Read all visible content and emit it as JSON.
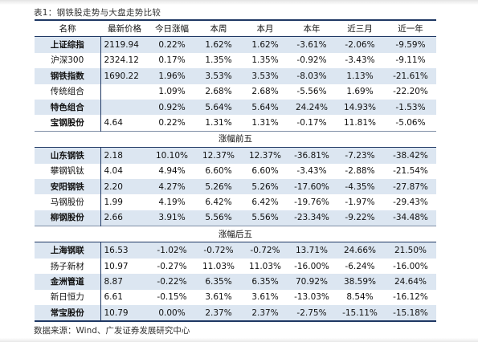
{
  "caption": "表1：钢铁股走势与大盘走势比较",
  "headers": [
    "名称",
    "最新价格",
    "今日涨幅",
    "本周",
    "本月",
    "本年",
    "近三月",
    "近一年"
  ],
  "sections": [
    {
      "title": "",
      "rows": [
        {
          "name": "上证综指",
          "shaded": true,
          "bold": true,
          "values": [
            "2119.94",
            "0.22%",
            "1.62%",
            "1.62%",
            "-3.61%",
            "-2.06%",
            "-9.59%"
          ]
        },
        {
          "name": "沪深300",
          "shaded": false,
          "bold": false,
          "values": [
            "2324.12",
            "0.17%",
            "1.35%",
            "1.35%",
            "-0.92%",
            "-3.43%",
            "-9.11%"
          ]
        },
        {
          "name": "钢铁指数",
          "shaded": true,
          "bold": true,
          "values": [
            "1690.22",
            "1.96%",
            "3.53%",
            "3.53%",
            "-8.03%",
            "1.13%",
            "-21.61%"
          ]
        },
        {
          "name": "传统组合",
          "shaded": false,
          "bold": false,
          "values": [
            "",
            "1.09%",
            "2.68%",
            "2.68%",
            "-5.56%",
            "1.69%",
            "-22.20%"
          ]
        },
        {
          "name": "特色组合",
          "shaded": true,
          "bold": true,
          "values": [
            "",
            "0.92%",
            "5.64%",
            "5.64%",
            "24.24%",
            "14.93%",
            "-1.53%"
          ]
        },
        {
          "name": "宝钢股份",
          "shaded": false,
          "bold": true,
          "values": [
            "4.64",
            "0.22%",
            "1.31%",
            "1.31%",
            "-0.17%",
            "11.81%",
            "-5.06%"
          ]
        }
      ]
    },
    {
      "title": "涨幅前五",
      "rows": [
        {
          "name": "山东钢铁",
          "shaded": true,
          "bold": true,
          "values": [
            "2.18",
            "10.10%",
            "12.37%",
            "12.37%",
            "-36.81%",
            "-7.23%",
            "-38.42%"
          ]
        },
        {
          "name": "攀钢钒钛",
          "shaded": false,
          "bold": false,
          "values": [
            "4.04",
            "4.94%",
            "6.60%",
            "6.60%",
            "-3.43%",
            "-2.88%",
            "-21.54%"
          ]
        },
        {
          "name": "安阳钢铁",
          "shaded": true,
          "bold": true,
          "values": [
            "2.20",
            "4.27%",
            "5.26%",
            "5.26%",
            "-17.60%",
            "-4.35%",
            "-27.87%"
          ]
        },
        {
          "name": "马钢股份",
          "shaded": false,
          "bold": false,
          "values": [
            "1.99",
            "4.19%",
            "6.42%",
            "6.42%",
            "-19.76%",
            "-1.97%",
            "-29.43%"
          ]
        },
        {
          "name": "柳钢股份",
          "shaded": true,
          "bold": true,
          "values": [
            "2.66",
            "3.91%",
            "5.56%",
            "5.56%",
            "-23.34%",
            "-9.22%",
            "-34.48%"
          ]
        }
      ]
    },
    {
      "title": "涨幅后五",
      "rows": [
        {
          "name": "上海钢联",
          "shaded": true,
          "bold": true,
          "values": [
            "16.53",
            "-1.02%",
            "-0.72%",
            "-0.72%",
            "13.71%",
            "24.66%",
            "21.50%"
          ]
        },
        {
          "name": "扬子新材",
          "shaded": false,
          "bold": false,
          "values": [
            "10.97",
            "-0.27%",
            "11.03%",
            "11.03%",
            "-16.00%",
            "-6.24%",
            "-16.00%"
          ]
        },
        {
          "name": "金洲管道",
          "shaded": true,
          "bold": true,
          "values": [
            "8.87",
            "-0.22%",
            "6.35%",
            "6.35%",
            "70.92%",
            "38.59%",
            "24.64%"
          ]
        },
        {
          "name": "新日恒力",
          "shaded": false,
          "bold": false,
          "values": [
            "6.61",
            "-0.15%",
            "3.61%",
            "3.61%",
            "-13.03%",
            "8.54%",
            "-16.12%"
          ]
        },
        {
          "name": "常宝股份",
          "shaded": true,
          "bold": true,
          "values": [
            "10.79",
            "0.00%",
            "2.37%",
            "2.37%",
            "-2.75%",
            "-15.11%",
            "-15.18%"
          ]
        }
      ]
    }
  ],
  "source": "数据来源：Wind、广发证券发展研究中心"
}
